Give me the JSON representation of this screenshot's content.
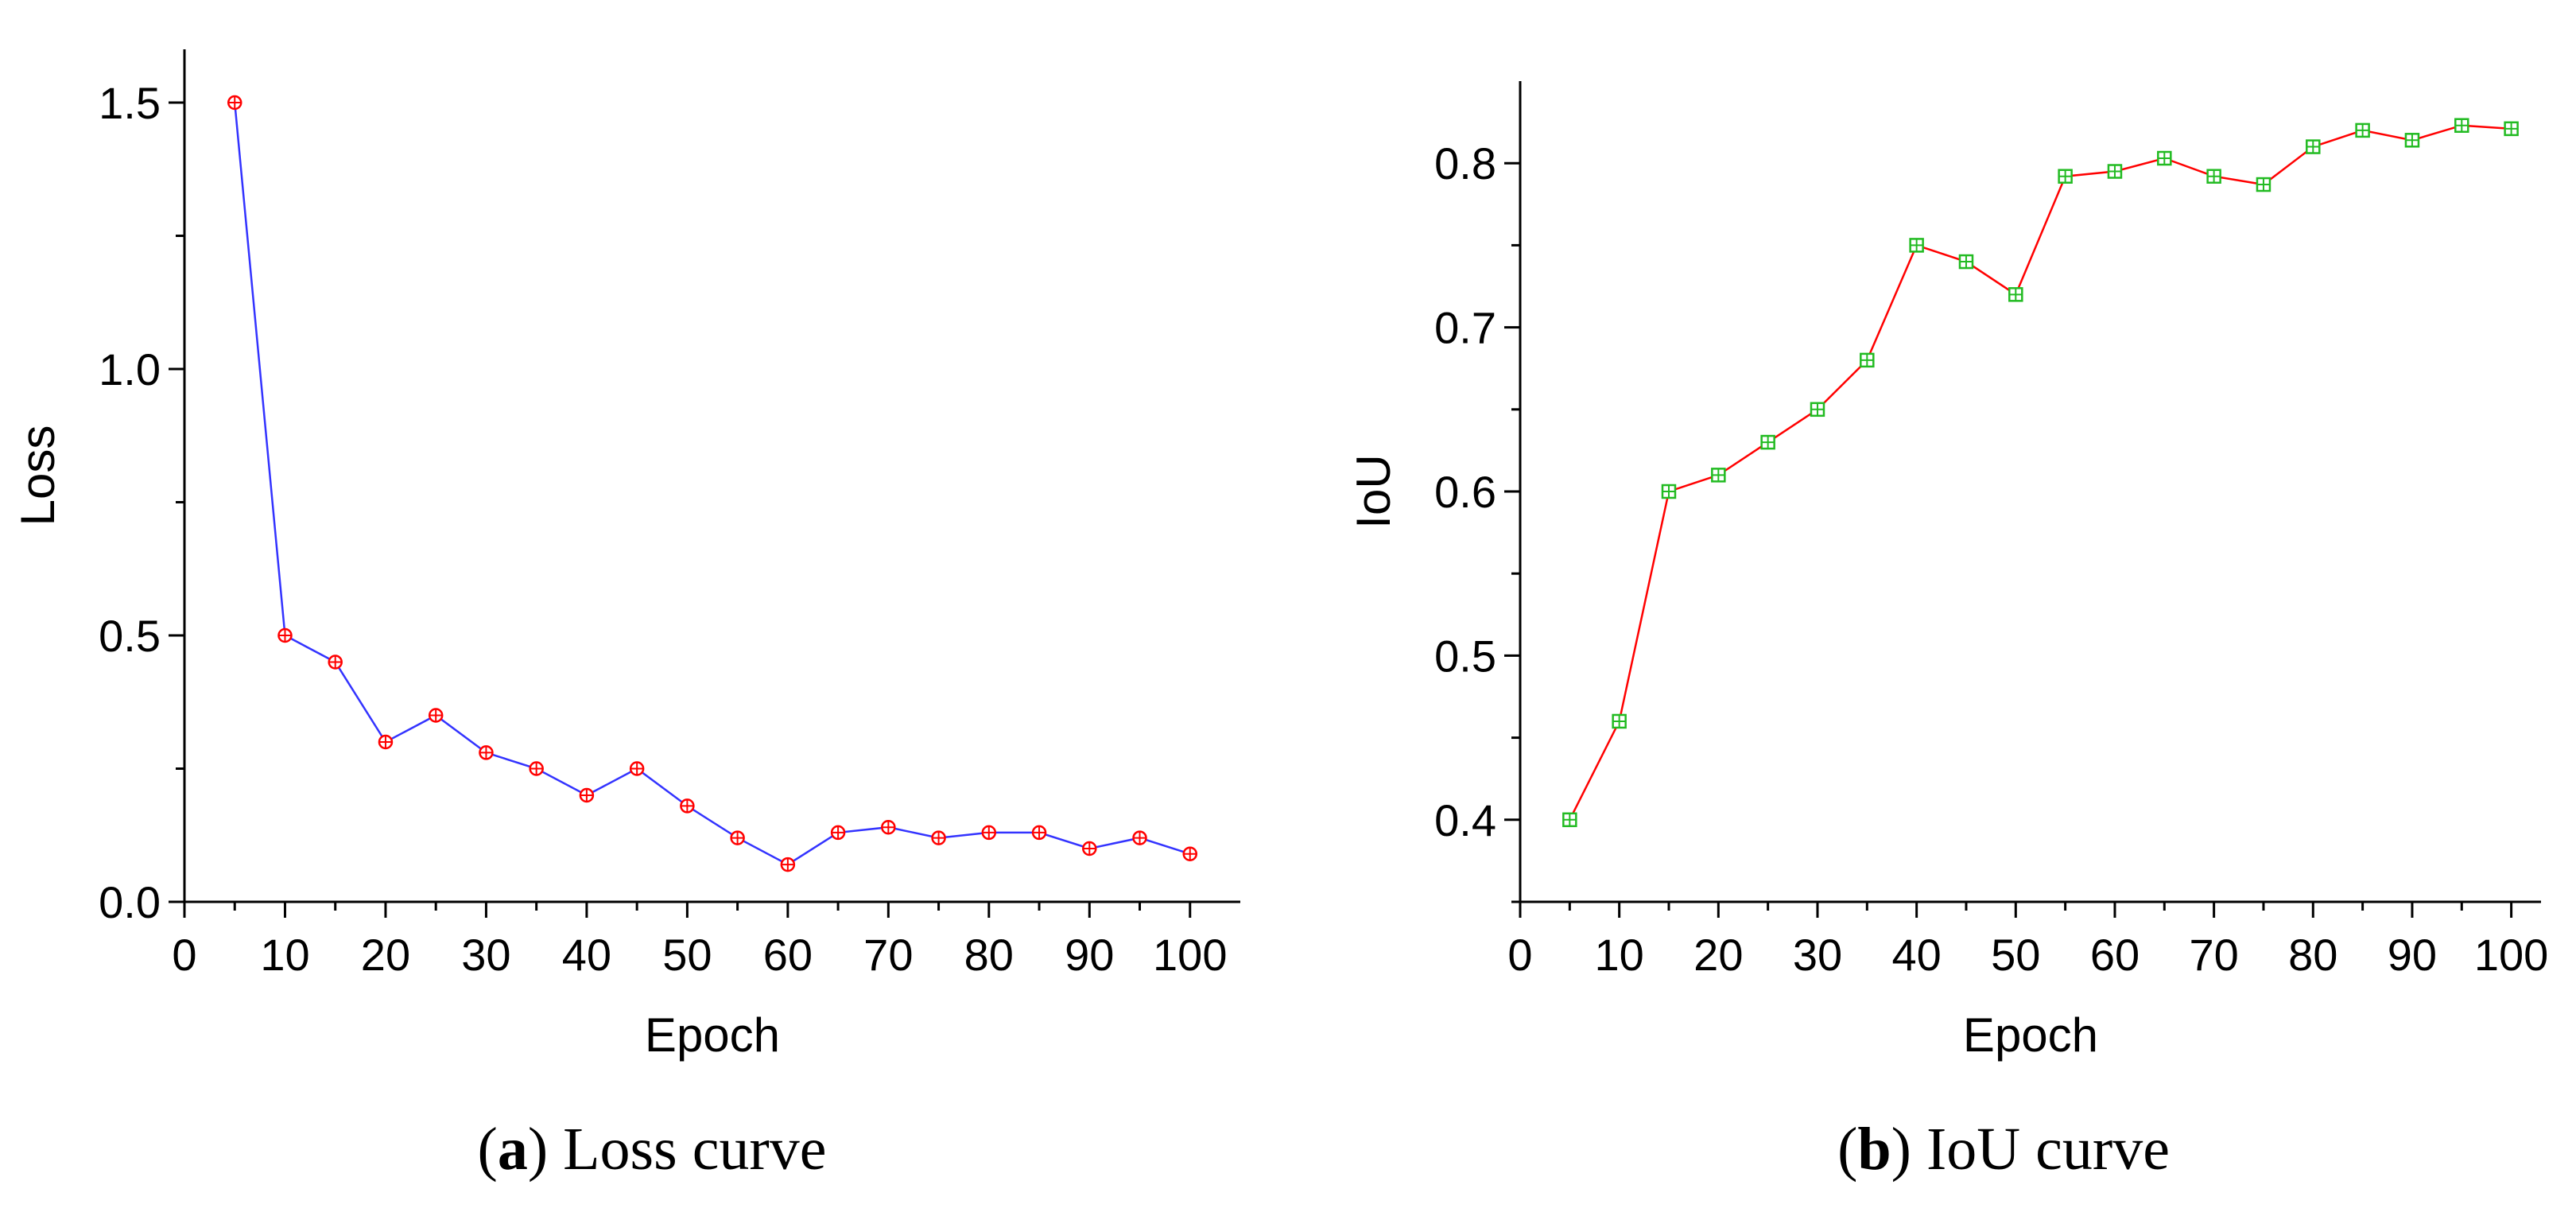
{
  "chart_data": [
    {
      "type": "line",
      "xlabel": "Epoch",
      "ylabel": "Loss",
      "xlim": [
        0,
        105
      ],
      "ylim": [
        0,
        1.6
      ],
      "xticks": [
        0,
        10,
        20,
        30,
        40,
        50,
        60,
        70,
        80,
        90,
        100
      ],
      "yticks": [
        0.0,
        0.5,
        1.0,
        1.5
      ],
      "ytick_labels": [
        "0.0",
        "0.5",
        "1.0",
        "1.5"
      ],
      "x": [
        5,
        10,
        15,
        20,
        25,
        30,
        35,
        40,
        45,
        50,
        55,
        60,
        65,
        70,
        75,
        80,
        85,
        90,
        95,
        100
      ],
      "series": [
        {
          "values": [
            1.5,
            0.5,
            0.45,
            0.3,
            0.35,
            0.28,
            0.25,
            0.2,
            0.25,
            0.18,
            0.12,
            0.07,
            0.13,
            0.14,
            0.12,
            0.13,
            0.13,
            0.1,
            0.12,
            0.09
          ],
          "line_color": "#3333ff",
          "marker_color": "#ff0000",
          "marker": "circle-plus"
        }
      ],
      "caption_letter": "a",
      "caption_text": " Loss curve"
    },
    {
      "type": "line",
      "xlabel": "Epoch",
      "ylabel": "IoU",
      "xlim": [
        0,
        103
      ],
      "ylim": [
        0.35,
        0.85
      ],
      "xticks": [
        0,
        10,
        20,
        30,
        40,
        50,
        60,
        70,
        80,
        90,
        100
      ],
      "yticks": [
        0.4,
        0.5,
        0.6,
        0.7,
        0.8
      ],
      "ytick_labels": [
        "0.4",
        "0.5",
        "0.6",
        "0.7",
        "0.8"
      ],
      "x": [
        5,
        10,
        15,
        20,
        25,
        30,
        35,
        40,
        45,
        50,
        55,
        60,
        65,
        70,
        75,
        80,
        85,
        90,
        95,
        100
      ],
      "series": [
        {
          "values": [
            0.4,
            0.46,
            0.6,
            0.61,
            0.63,
            0.65,
            0.68,
            0.75,
            0.74,
            0.72,
            0.792,
            0.795,
            0.803,
            0.792,
            0.787,
            0.81,
            0.82,
            0.814,
            0.823,
            0.821
          ],
          "line_color": "#ff0000",
          "marker_color": "#22bb22",
          "marker": "square-plus"
        }
      ],
      "caption_letter": "b",
      "caption_text": " IoU curve"
    }
  ]
}
